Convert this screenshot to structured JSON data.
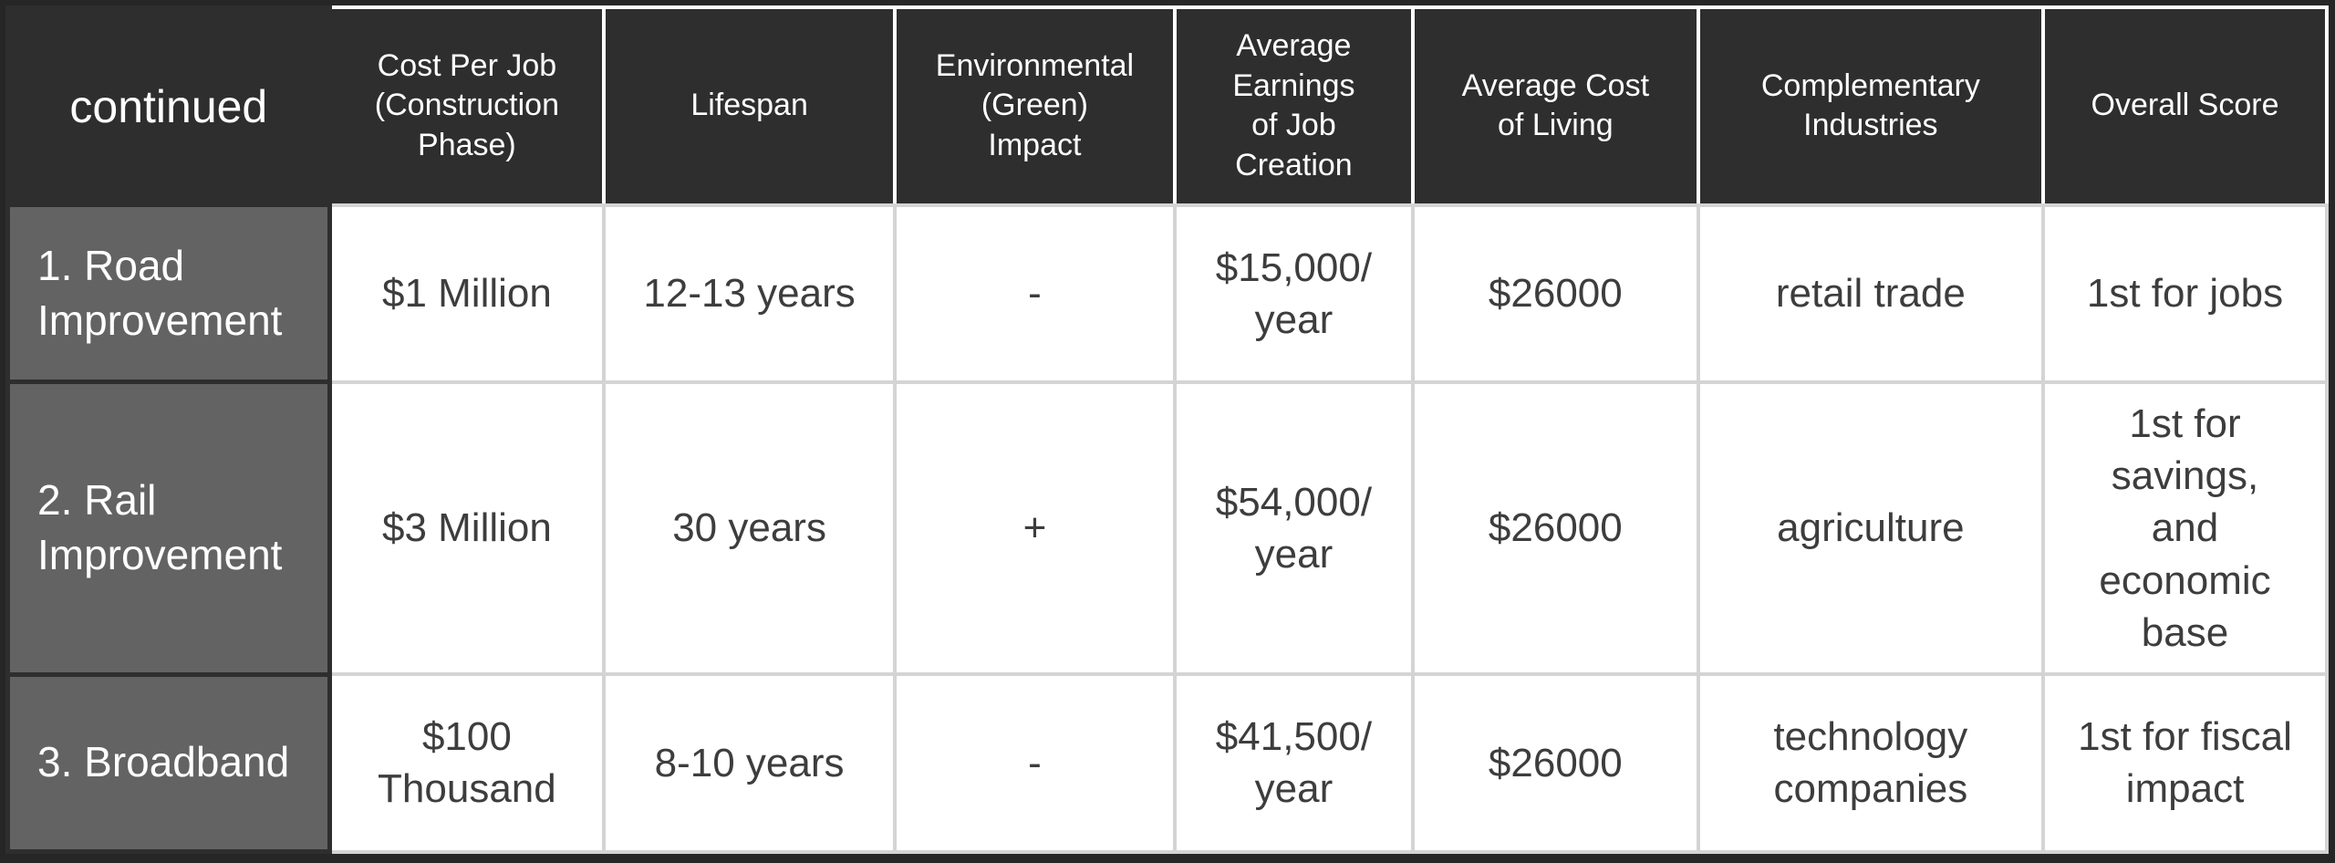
{
  "table": {
    "corner_label": "continued",
    "columns": [
      {
        "label": "Cost Per Job\n(Construction\nPhase)"
      },
      {
        "label": "Lifespan"
      },
      {
        "label": "Environmental\n(Green)\nImpact"
      },
      {
        "label": "Average\nEarnings\nof Job\nCreation"
      },
      {
        "label": "Average Cost\nof Living"
      },
      {
        "label": "Complementary\nIndustries"
      },
      {
        "label": "Overall Score"
      }
    ],
    "rows": [
      {
        "label": "1. Road\nImprovement",
        "cells": [
          "$1 Million",
          "12-13 years",
          "-",
          "$15,000/\nyear",
          "$26000",
          "retail trade",
          "1st for jobs"
        ]
      },
      {
        "label": "2. Rail\nImprovement",
        "cells": [
          "$3 Million",
          "30 years",
          "+",
          "$54,000/\nyear",
          "$26000",
          "agriculture",
          "1st for\nsavings,\nand\neconomic\nbase"
        ]
      },
      {
        "label": "3. Broadband",
        "cells": [
          "$100\nThousand",
          "8-10 years",
          "-",
          "$41,500/\nyear",
          "$26000",
          "technology\ncompanies",
          "1st for fiscal\nimpact"
        ]
      }
    ],
    "colors": {
      "header_bg": "#2e2e2e",
      "row_label_bg": "#646363",
      "cell_bg": "#ffffff",
      "grid_light": "#d4d4d4",
      "outer_border": "#262626",
      "body_text": "#3d3d3d",
      "header_text": "#ffffff"
    }
  }
}
